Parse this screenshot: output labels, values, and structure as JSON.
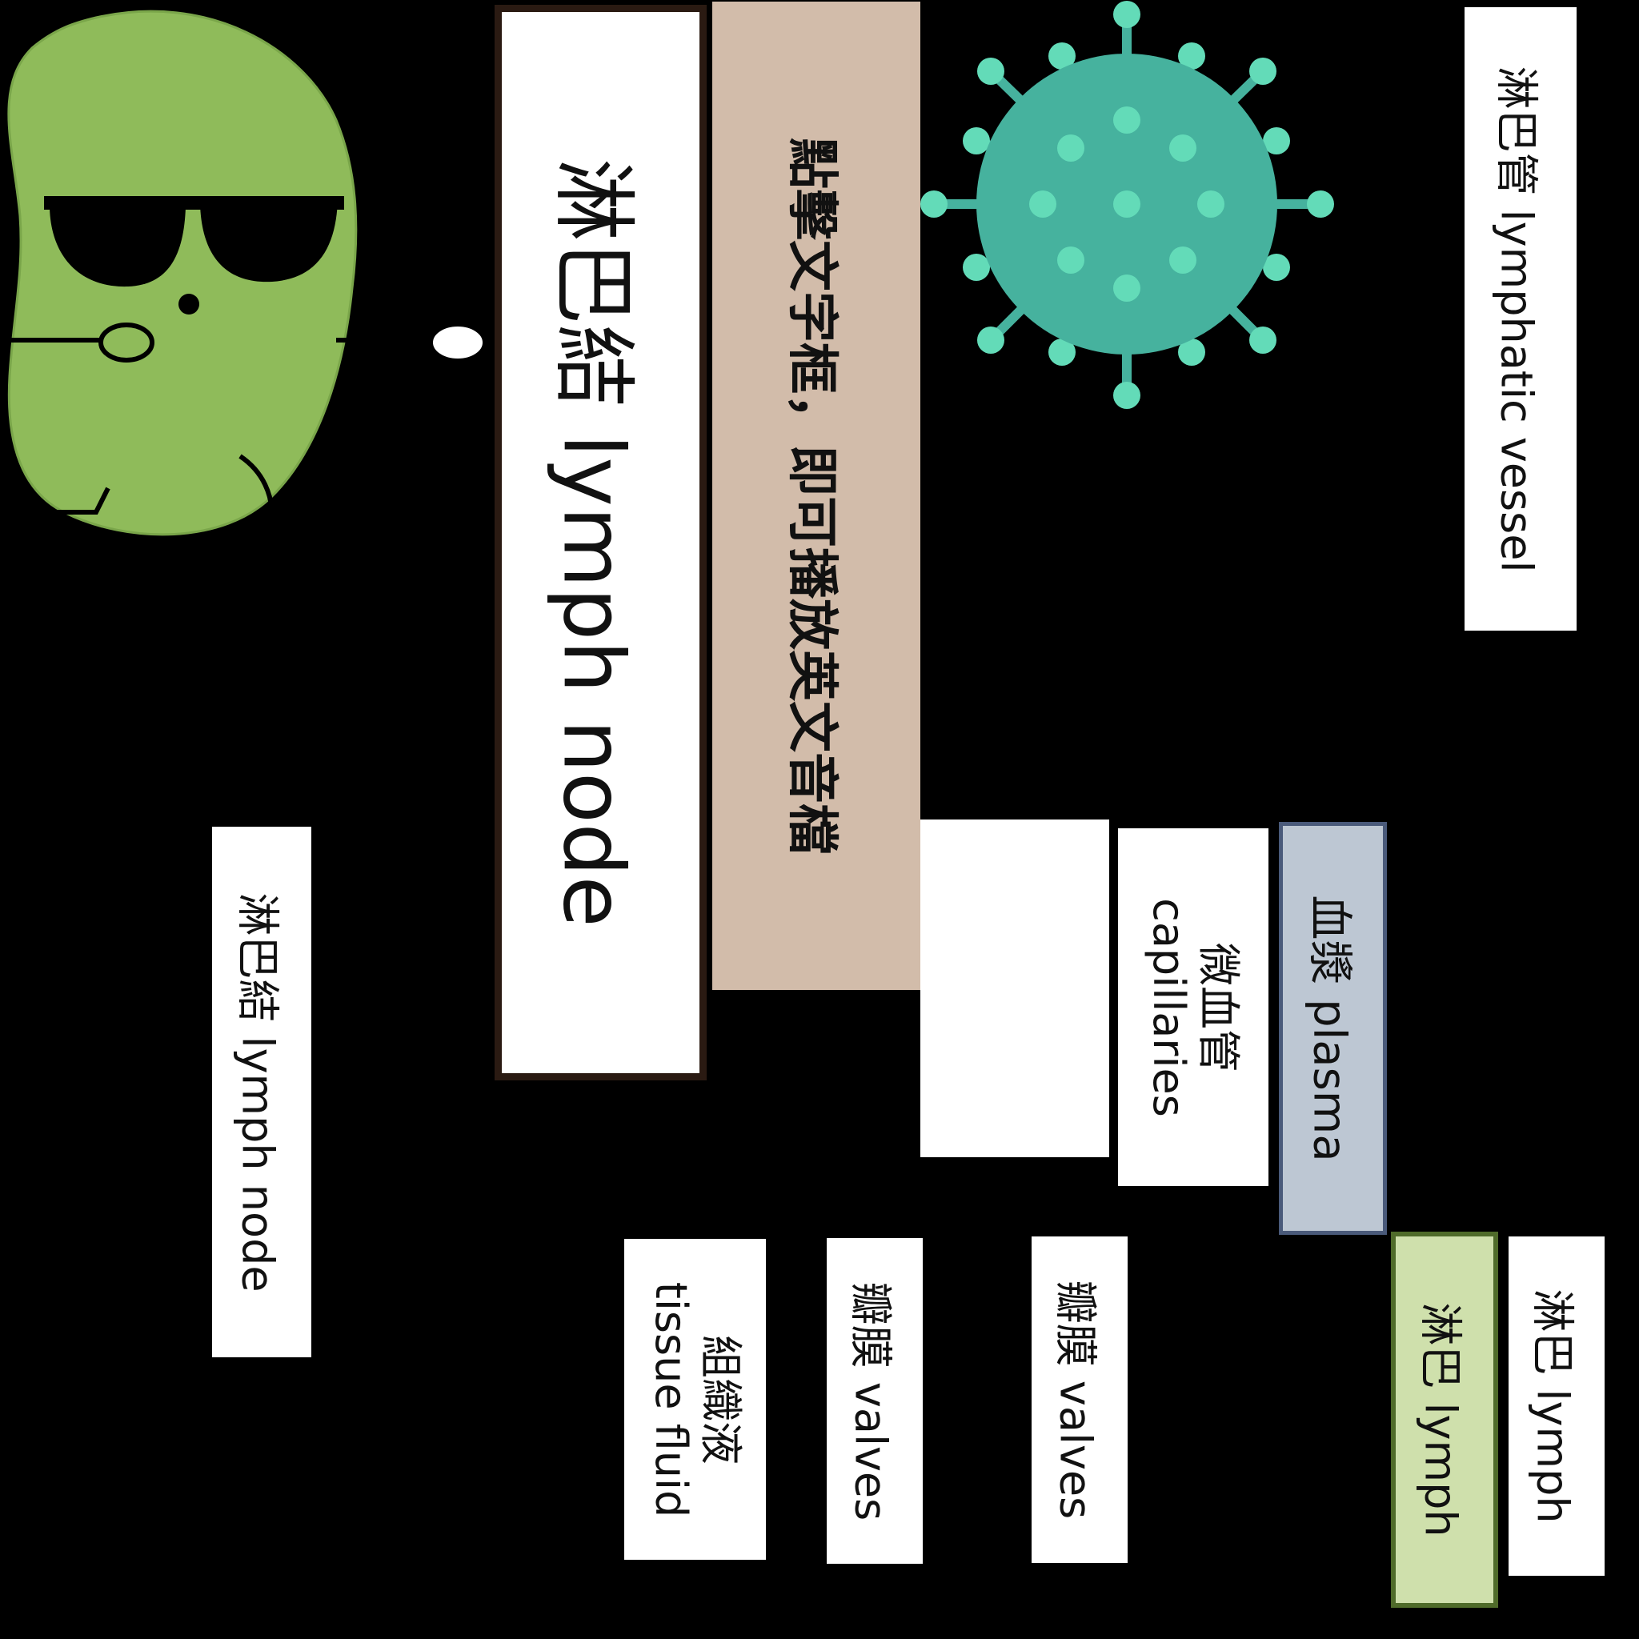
{
  "labels": {
    "lymph_node_main": "淋巴結 lymph node",
    "click_hint": "點擊文字框，即可播放英文音檔",
    "lymphatic_vessel": "淋巴管 lymphatic vessel",
    "lymph_node_small": "淋巴結 lymph node",
    "capillaries_zh": "微血管",
    "capillaries_en": "capillaries",
    "plasma": "血漿 plasma",
    "tissue_fluid_zh": "組織液",
    "tissue_fluid_en": "tissue fluid",
    "valves_1": "瓣膜 valves",
    "valves_2": "瓣膜 valves",
    "lymph_green": "淋巴 lymph",
    "lymph_white": "淋巴 lymph"
  },
  "icons": {
    "mascot": "lymph-node-bean-mascot-icon",
    "virus": "virus-icon"
  },
  "colors": {
    "background": "#000000",
    "box_white": "#ffffff",
    "hint_tan": "#d2bcaa",
    "plasma_blue": "#bdc7d3",
    "plasma_border": "#4a5a7a",
    "lymph_green": "#cfe0ac",
    "lymph_green_border": "#4f6b2a",
    "mascot_green": "#8fbb5a",
    "virus_body": "#46b29e",
    "virus_dots": "#63dbb8"
  }
}
